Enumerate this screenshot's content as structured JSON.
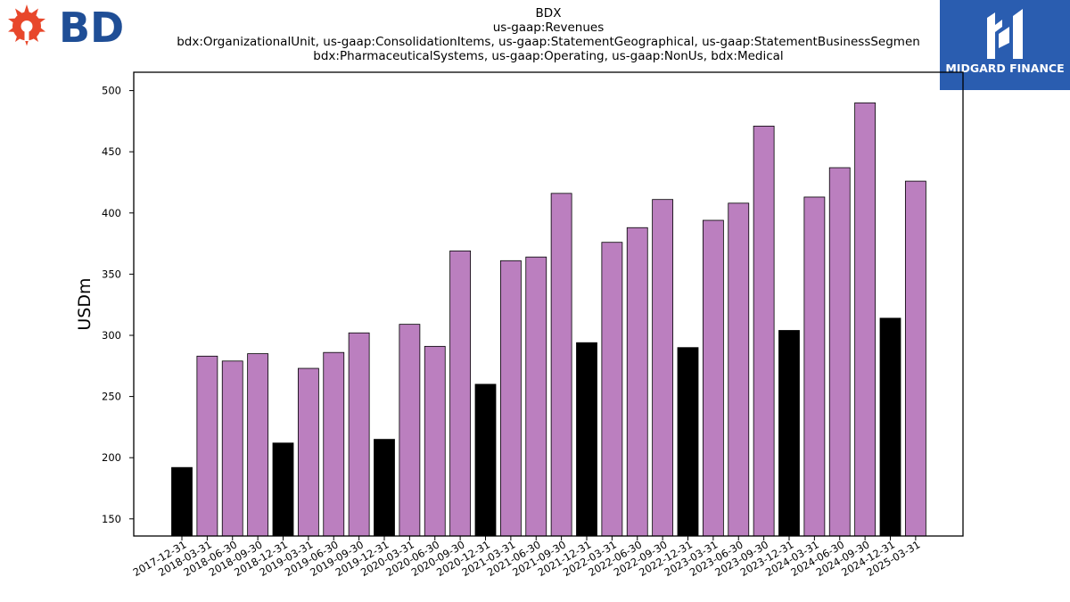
{
  "brand_logo": {
    "text": "BD",
    "icon": "bd-starburst-icon",
    "icon_color": "#e8472b",
    "text_color": "#1f4e96"
  },
  "partner_logo": {
    "text": "MIDGARD FINANCE",
    "icon": "midgard-mark-icon",
    "background": "#2a5db0"
  },
  "chart_data": {
    "type": "bar",
    "title_lines": [
      "BDX",
      "us-gaap:Revenues",
      "bdx:OrganizationalUnit, us-gaap:ConsolidationItems, us-gaap:StatementGeographical, us-gaap:StatementBusinessSegmen",
      "bdx:PharmaceuticalSystems, us-gaap:Operating, us-gaap:NonUs, bdx:Medical"
    ],
    "xlabel": "",
    "ylabel": "USDm",
    "ylim": [
      136,
      515
    ],
    "yticks": [
      150,
      200,
      250,
      300,
      350,
      400,
      450,
      500
    ],
    "grid": false,
    "legend": "none",
    "colors": {
      "quarter": "#bb7fbf",
      "fiscal_year_end": "#000000",
      "edge": "#000000"
    },
    "categories": [
      "2017-12-31",
      "2018-03-31",
      "2018-06-30",
      "2018-09-30",
      "2018-12-31",
      "2019-03-31",
      "2019-06-30",
      "2019-09-30",
      "2019-12-31",
      "2020-03-31",
      "2020-06-30",
      "2020-09-30",
      "2020-12-31",
      "2021-03-31",
      "2021-06-30",
      "2021-09-30",
      "2021-12-31",
      "2022-03-31",
      "2022-06-30",
      "2022-09-30",
      "2022-12-31",
      "2023-03-31",
      "2023-06-30",
      "2023-09-30",
      "2023-12-31",
      "2024-03-31",
      "2024-06-30",
      "2024-09-30",
      "2024-12-31",
      "2025-03-31"
    ],
    "values": [
      192,
      283,
      279,
      285,
      212,
      273,
      286,
      302,
      215,
      309,
      291,
      369,
      260,
      361,
      364,
      416,
      294,
      376,
      388,
      411,
      290,
      394,
      408,
      471,
      304,
      413,
      437,
      490,
      314,
      426
    ],
    "bar_colors": [
      "fiscal_year_end",
      "quarter",
      "quarter",
      "quarter",
      "fiscal_year_end",
      "quarter",
      "quarter",
      "quarter",
      "fiscal_year_end",
      "quarter",
      "quarter",
      "quarter",
      "fiscal_year_end",
      "quarter",
      "quarter",
      "quarter",
      "fiscal_year_end",
      "quarter",
      "quarter",
      "quarter",
      "fiscal_year_end",
      "quarter",
      "quarter",
      "quarter",
      "fiscal_year_end",
      "quarter",
      "quarter",
      "quarter",
      "fiscal_year_end",
      "quarter"
    ]
  }
}
